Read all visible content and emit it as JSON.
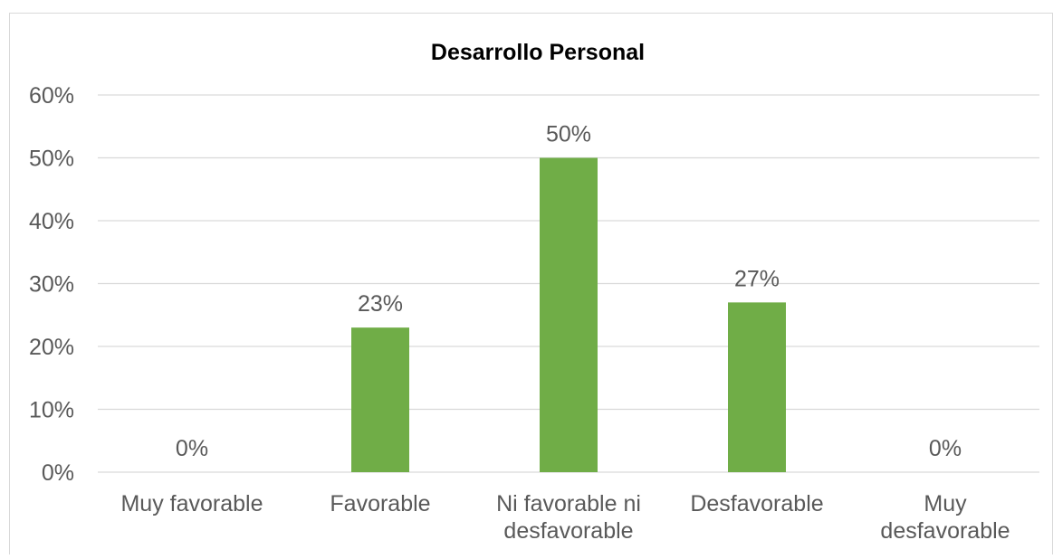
{
  "chart_data": {
    "type": "bar",
    "title": "Desarrollo Personal",
    "categories": [
      [
        "Muy favorable"
      ],
      [
        "Favorable"
      ],
      [
        "Ni favorable ni",
        "desfavorable"
      ],
      [
        "Desfavorable"
      ],
      [
        "Muy",
        "desfavorable"
      ]
    ],
    "values": [
      0,
      23,
      50,
      27,
      0
    ],
    "data_labels": [
      "0%",
      "23%",
      "50%",
      "27%",
      "0%"
    ],
    "y_ticks": [
      "0%",
      "10%",
      "20%",
      "30%",
      "40%",
      "50%",
      "60%"
    ],
    "ylim": [
      0,
      60
    ],
    "xlabel": "",
    "ylabel": "",
    "grid": true,
    "legend": "none",
    "colors": {
      "bar": "#70ad47",
      "gridline": "#d9d9d9",
      "axis_text": "#595959",
      "title": "#000000",
      "border": "#d9d9d9"
    }
  }
}
